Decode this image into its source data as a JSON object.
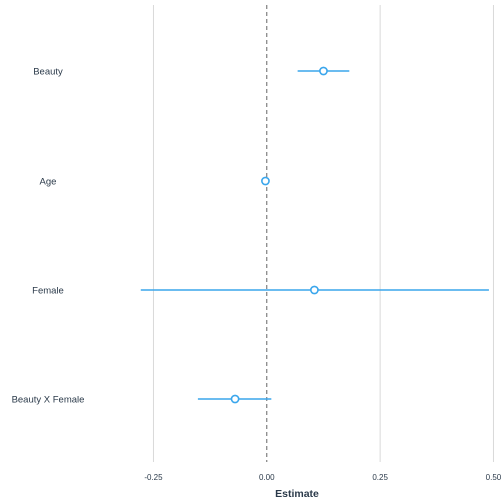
{
  "chart_data": {
    "type": "scatter",
    "subtype": "coefficient-plot",
    "xlabel": "Estimate",
    "ylabel": "",
    "xlim": [
      -0.39,
      0.51
    ],
    "xticks": [
      -0.25,
      0.0,
      0.25,
      0.5
    ],
    "xtick_labels": [
      "-0.25",
      "0.00",
      "0.25",
      "0.50"
    ],
    "reference_line": 0,
    "grid": "vertical-major",
    "points": [
      {
        "term": "Beauty",
        "estimate": 0.125,
        "low": 0.068,
        "high": 0.182
      },
      {
        "term": "Age",
        "estimate": -0.003,
        "low": -0.005,
        "high": -0.001
      },
      {
        "term": "Female",
        "estimate": 0.105,
        "low": -0.278,
        "high": 0.49
      },
      {
        "term": "Beauty X Female",
        "estimate": -0.07,
        "low": -0.152,
        "high": 0.01
      }
    ],
    "colors": {
      "series": "#3aa6ec",
      "point_fill": "#ffffff",
      "grid": "#d9d9d9",
      "reference": "#555555",
      "text": "#2b3a4a"
    }
  }
}
